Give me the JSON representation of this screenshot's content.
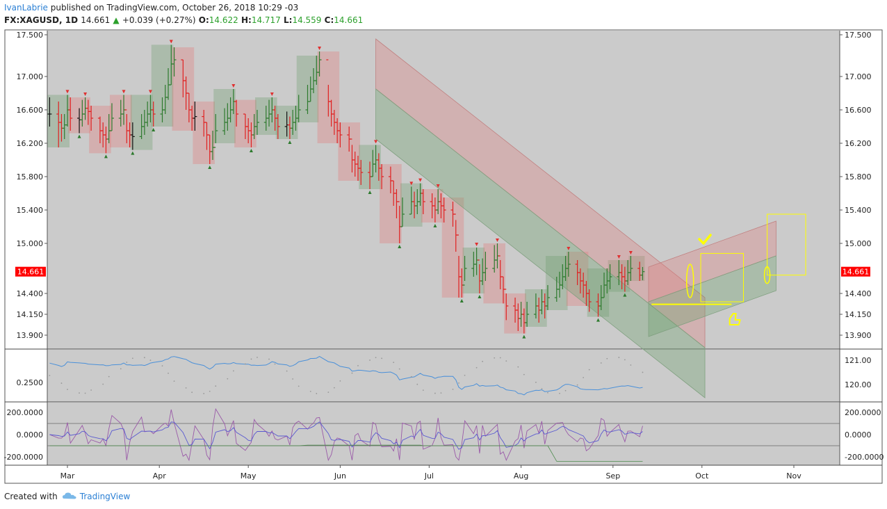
{
  "header": {
    "author": "IvanLabrie",
    "published_text": "published on TradingView.com, October 26, 2018 10:29 -03",
    "symbol": "FX:XAGUSD, 1D",
    "last": "14.661",
    "change": "+0.039 (+0.27%)",
    "o_label": "O:",
    "o_value": "14.622",
    "h_label": "H:",
    "h_value": "14.717",
    "l_label": "L:",
    "l_value": "14.559",
    "c_label": "C:",
    "c_value": "14.661"
  },
  "footer": {
    "created_with": "Created with",
    "brand": "TradingView"
  },
  "colors": {
    "up": "#2d7a2d",
    "down": "#e02020",
    "neutral": "#111111",
    "bg": "#cbcbcb",
    "accent": "#2a7fd4",
    "price_tag": "#ff0000",
    "highlight": "#ffff00"
  },
  "chart_data": {
    "type": "ohlc",
    "symbol": "FX:XAGUSD",
    "interval": "1D",
    "x_tick_labels": [
      "Mar",
      "Apr",
      "May",
      "Jun",
      "Jul",
      "Aug",
      "Sep",
      "Oct",
      "Nov"
    ],
    "y_tick_labels": [
      "17.500",
      "17.000",
      "16.600",
      "16.200",
      "15.800",
      "15.400",
      "15.000",
      "14.400",
      "14.150",
      "13.900"
    ],
    "y_tick_values": [
      17.5,
      17.0,
      16.6,
      16.2,
      15.8,
      15.4,
      15.0,
      14.4,
      14.15,
      13.9
    ],
    "last_price_label": "14.661",
    "ylim": [
      13.75,
      17.55
    ],
    "date_range": [
      "2018-02-23",
      "2018-10-26"
    ],
    "closes": [
      16.55,
      16.45,
      16.38,
      16.42,
      16.6,
      16.5,
      16.48,
      16.55,
      16.62,
      16.58,
      16.5,
      16.35,
      16.3,
      16.25,
      16.35,
      16.5,
      16.55,
      16.6,
      16.35,
      16.3,
      16.28,
      16.4,
      16.45,
      16.55,
      16.6,
      16.55,
      16.6,
      16.75,
      16.9,
      17.15,
      17.2,
      16.95,
      16.8,
      16.6,
      16.5,
      16.52,
      16.45,
      16.3,
      16.1,
      16.15,
      16.35,
      16.45,
      16.5,
      16.6,
      16.7,
      16.55,
      16.4,
      16.35,
      16.3,
      16.4,
      16.45,
      16.5,
      16.55,
      16.6,
      16.5,
      16.4,
      16.42,
      16.38,
      16.45,
      16.5,
      16.6,
      16.7,
      16.85,
      16.95,
      17.05,
      17.2,
      16.7,
      16.55,
      16.45,
      16.35,
      16.3,
      16.25,
      16.0,
      15.95,
      15.9,
      15.85,
      15.8,
      15.95,
      16.0,
      15.9,
      15.8,
      15.75,
      15.6,
      15.5,
      15.2,
      15.35,
      15.5,
      15.45,
      15.5,
      15.6,
      15.5,
      15.45,
      15.4,
      15.5,
      15.45,
      15.4,
      15.35,
      15.1,
      14.6,
      14.5,
      14.7,
      14.75,
      14.8,
      14.55,
      14.65,
      14.7,
      14.8,
      14.85,
      14.6,
      14.45,
      14.25,
      14.2,
      14.1,
      14.15,
      14.05,
      14.15,
      14.25,
      14.2,
      14.3,
      14.25,
      14.35,
      14.45,
      14.5,
      14.6,
      14.7,
      14.75,
      14.65,
      14.55,
      14.5,
      14.4,
      14.3,
      14.25,
      14.35,
      14.5,
      14.55,
      14.6,
      14.65,
      14.6,
      14.55,
      14.65,
      14.7,
      14.62,
      14.661
    ],
    "highs": [
      16.75,
      16.7,
      16.55,
      16.55,
      16.78,
      16.75,
      16.62,
      16.72,
      16.75,
      16.72,
      16.65,
      16.52,
      16.45,
      16.4,
      16.55,
      16.68,
      16.72,
      16.78,
      16.55,
      16.45,
      16.45,
      16.55,
      16.6,
      16.7,
      16.78,
      16.7,
      16.75,
      16.9,
      17.1,
      17.38,
      17.35,
      17.2,
      17.0,
      16.8,
      16.65,
      16.7,
      16.6,
      16.45,
      16.3,
      16.35,
      16.55,
      16.62,
      16.68,
      16.75,
      16.85,
      16.72,
      16.55,
      16.5,
      16.45,
      16.55,
      16.6,
      16.65,
      16.72,
      16.75,
      16.65,
      16.55,
      16.58,
      16.52,
      16.6,
      16.65,
      16.78,
      16.9,
      17.0,
      17.1,
      17.25,
      17.3,
      16.9,
      16.72,
      16.6,
      16.5,
      16.45,
      16.4,
      16.18,
      16.1,
      16.05,
      16.0,
      15.98,
      16.12,
      16.18,
      16.08,
      15.95,
      15.92,
      15.75,
      15.65,
      15.45,
      15.55,
      15.68,
      15.62,
      15.65,
      15.72,
      15.65,
      15.6,
      15.55,
      15.65,
      15.6,
      15.55,
      15.5,
      15.28,
      14.85,
      14.7,
      14.85,
      14.9,
      14.95,
      14.75,
      14.82,
      14.9,
      14.98,
      15.0,
      14.8,
      14.6,
      14.4,
      14.35,
      14.28,
      14.3,
      14.22,
      14.3,
      14.4,
      14.35,
      14.45,
      14.4,
      14.5,
      14.6,
      14.66,
      14.75,
      14.85,
      14.9,
      14.8,
      14.7,
      14.65,
      14.55,
      14.45,
      14.4,
      14.5,
      14.65,
      14.7,
      14.75,
      14.8,
      14.75,
      14.72,
      14.8,
      14.85,
      14.78,
      14.717
    ],
    "lows": [
      16.4,
      16.15,
      16.22,
      16.25,
      16.4,
      16.35,
      16.32,
      16.4,
      16.48,
      16.42,
      16.35,
      16.2,
      16.15,
      16.08,
      16.2,
      16.35,
      16.4,
      16.42,
      16.2,
      16.15,
      16.12,
      16.25,
      16.3,
      16.4,
      16.45,
      16.4,
      16.45,
      16.55,
      16.72,
      16.9,
      17.0,
      16.75,
      16.6,
      16.45,
      16.35,
      16.35,
      16.28,
      16.12,
      15.95,
      16.0,
      16.2,
      16.3,
      16.35,
      16.45,
      16.55,
      16.4,
      16.25,
      16.2,
      16.15,
      16.25,
      16.3,
      16.35,
      16.4,
      16.45,
      16.35,
      16.25,
      16.28,
      16.25,
      16.3,
      16.35,
      16.45,
      16.55,
      16.7,
      16.8,
      16.9,
      17.0,
      16.52,
      16.4,
      16.3,
      16.2,
      16.15,
      16.1,
      15.85,
      15.8,
      15.75,
      15.7,
      15.65,
      15.8,
      15.85,
      15.75,
      15.65,
      15.6,
      15.45,
      15.3,
      15.0,
      15.2,
      15.35,
      15.3,
      15.35,
      15.45,
      15.35,
      15.3,
      15.25,
      15.35,
      15.3,
      15.25,
      15.2,
      14.9,
      14.35,
      14.35,
      14.55,
      14.6,
      14.62,
      14.4,
      14.5,
      14.55,
      14.65,
      14.7,
      14.45,
      14.28,
      14.08,
      14.05,
      13.95,
      14.0,
      13.92,
      14.0,
      14.1,
      14.05,
      14.15,
      14.1,
      14.2,
      14.3,
      14.35,
      14.45,
      14.55,
      14.6,
      14.5,
      14.4,
      14.35,
      14.25,
      14.18,
      14.12,
      14.2,
      14.35,
      14.4,
      14.45,
      14.5,
      14.45,
      14.42,
      14.5,
      14.55,
      14.55,
      14.559
    ],
    "annotations": {
      "descending_channel": {
        "start": [
          "2018-06-13",
          16.85
        ],
        "end": [
          "2018-10-02",
          13.75
        ]
      },
      "ascending_channel": {
        "start": [
          "2018-09-13",
          14.3
        ],
        "end": [
          "2018-10-26",
          14.85
        ]
      },
      "target_box": {
        "x": [
          "2018-10-23",
          "2018-11-05"
        ],
        "y": [
          14.62,
          15.35
        ]
      }
    },
    "panes": [
      {
        "name": "volatility",
        "y_tick_labels": [
          "121.00",
          "120.00"
        ],
        "left_tick_labels": [
          "0.2500"
        ]
      },
      {
        "name": "oscillator",
        "y_tick_labels": [
          "200.0000",
          "0.0000",
          "-200.0000"
        ],
        "left_tick_labels": [
          "200.0000",
          "0.0000",
          "-200.0000"
        ]
      }
    ]
  }
}
